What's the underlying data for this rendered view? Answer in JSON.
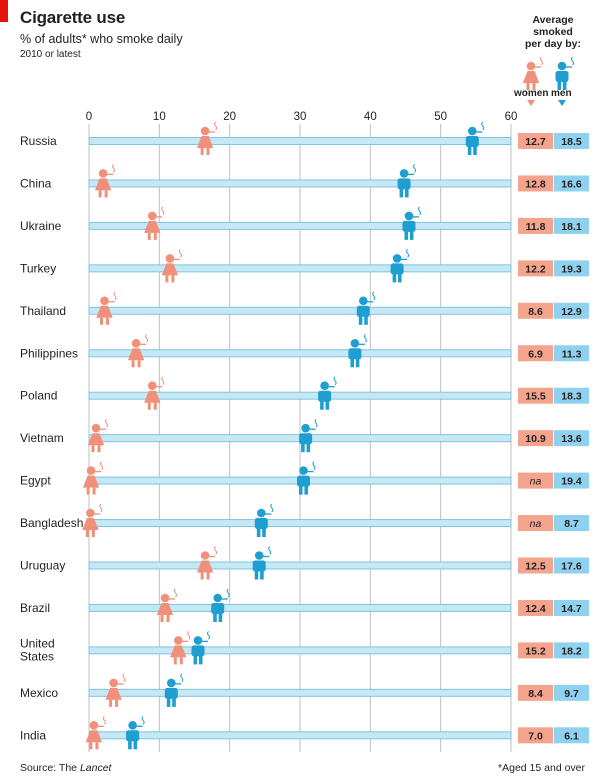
{
  "chart_data": {
    "type": "scatter",
    "title": "Cigarette use",
    "subtitle": "% of adults* who smoke daily",
    "note": "2010 or latest",
    "xlim": [
      0,
      60
    ],
    "xticks": [
      0,
      10,
      20,
      30,
      40,
      50,
      60
    ],
    "grid": true,
    "categories": [
      "Russia",
      "China",
      "Ukraine",
      "Turkey",
      "Thailand",
      "Philippines",
      "Poland",
      "Vietnam",
      "Egypt",
      "Bangladesh",
      "Uruguay",
      "Brazil",
      "United States",
      "Mexico",
      "India"
    ],
    "series": [
      {
        "name": "women",
        "color": "#f0907a",
        "icon": "woman-smoking-icon",
        "values": [
          16.5,
          2.0,
          9.0,
          11.5,
          2.2,
          6.7,
          9.0,
          1.0,
          0.3,
          0.2,
          16.5,
          10.8,
          12.7,
          3.5,
          0.7
        ],
        "avg_per_day": [
          "12.7",
          "12.8",
          "11.8",
          "12.2",
          "8.6",
          "6.9",
          "15.5",
          "10.9",
          "na",
          "na",
          "12.5",
          "12.4",
          "15.2",
          "8.4",
          "7.0"
        ]
      },
      {
        "name": "men",
        "color": "#1f9ed1",
        "icon": "man-smoking-icon",
        "values": [
          54.5,
          44.8,
          45.5,
          43.8,
          39.0,
          37.8,
          33.5,
          30.8,
          30.5,
          24.5,
          24.2,
          18.3,
          15.5,
          11.7,
          6.2
        ],
        "avg_per_day": [
          "18.5",
          "16.6",
          "18.1",
          "19.3",
          "12.9",
          "11.3",
          "18.3",
          "13.6",
          "19.4",
          "8.7",
          "17.6",
          "14.7",
          "18.2",
          "9.7",
          "6.1"
        ]
      }
    ],
    "avg_header": [
      "Average",
      "smoked",
      "per day by:"
    ],
    "legend": [
      "women",
      "men"
    ],
    "source_prefix": "Source: The ",
    "source_italic": "Lancet",
    "footnote": "*Aged 15 and over"
  },
  "colors": {
    "women": "#f0907a",
    "men": "#1f9ed1",
    "women_bg": "#f4a48d",
    "men_bg": "#8fd2ef",
    "bar_fill": "#c6e7f4",
    "bar_edge": "#7fc4e2",
    "accent": "#e3120b"
  }
}
